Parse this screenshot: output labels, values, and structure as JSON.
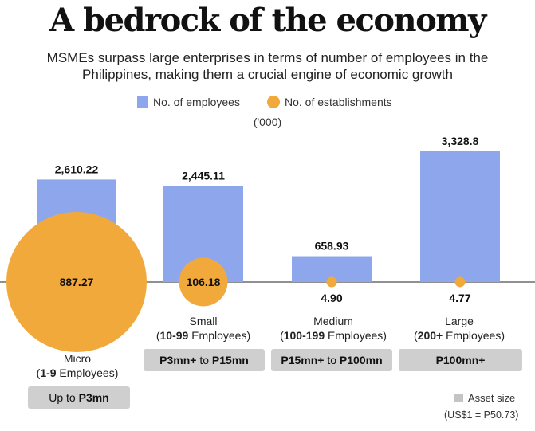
{
  "header": {
    "title": "A bedrock of the economy",
    "subtitle": "MSMEs surpass large enterprises in terms of number of employees in the Philippines, making them a crucial engine of economic growth"
  },
  "legend": {
    "employees": "No. of employees",
    "establishments": "No. of establishments",
    "unit": "('000)"
  },
  "colors": {
    "bars": "#8ea7ec",
    "circles": "#f2a93b",
    "asset_box": "#cfcfcf"
  },
  "chart_data": {
    "type": "bar",
    "categories": [
      "Micro",
      "Small",
      "Medium",
      "Large"
    ],
    "series": [
      {
        "name": "No. of employees",
        "values": [
          2610.22,
          2445.11,
          658.93,
          3328.8
        ],
        "labels": [
          "2,610.22",
          "2,445.11",
          "658.93",
          "3,328.8"
        ]
      },
      {
        "name": "No. of establishments",
        "values": [
          887.27,
          106.18,
          4.9,
          4.77
        ],
        "labels": [
          "887.27",
          "106.18",
          "4.90",
          "4.77"
        ]
      }
    ],
    "ylim": [
      0,
      3328.8
    ]
  },
  "categories": [
    {
      "name": "Micro",
      "range": "1-9",
      "suffix": " Employees)",
      "asset_pre": "Up to ",
      "asset_bold": "P3mn",
      "asset_mid": "",
      "asset_bold2": ""
    },
    {
      "name": "Small",
      "range": "10-99",
      "suffix": " Employees)",
      "asset_pre": "",
      "asset_bold": "P3mn+",
      "asset_mid": " to ",
      "asset_bold2": "P15mn"
    },
    {
      "name": "Medium",
      "range": "100-199",
      "suffix": " Employees)",
      "asset_pre": "",
      "asset_bold": "P15mn+",
      "asset_mid": " to ",
      "asset_bold2": "P100mn"
    },
    {
      "name": "Large",
      "range": "200+",
      "suffix": " Employees)",
      "asset_pre": "",
      "asset_bold": "P100mn+",
      "asset_mid": "",
      "asset_bold2": ""
    }
  ],
  "footer": {
    "asset_legend": "Asset size",
    "fx": "(US$1 = P50.73)"
  }
}
